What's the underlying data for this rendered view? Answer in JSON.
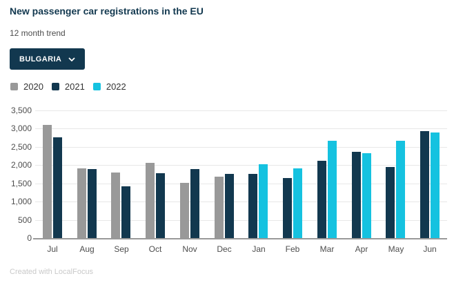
{
  "header": {
    "title": "New passenger car registrations in the EU",
    "subtitle": "12 month trend"
  },
  "dropdown": {
    "selected": "BULGARIA"
  },
  "footer": {
    "credit": "Created with LocalFocus"
  },
  "colors": {
    "accent_navy": "#12384f",
    "accent_cyan": "#15c2e0",
    "accent_gray": "#999999"
  },
  "chart_data": {
    "type": "bar",
    "title": "New passenger car registrations in the EU",
    "subtitle": "12 month trend",
    "categories": [
      "Jul",
      "Aug",
      "Sep",
      "Oct",
      "Nov",
      "Dec",
      "Jan",
      "Feb",
      "Mar",
      "Apr",
      "May",
      "Jun"
    ],
    "series": [
      {
        "name": "2020",
        "color": "#999999",
        "values": [
          3100,
          1910,
          1790,
          2060,
          1510,
          1680,
          null,
          null,
          null,
          null,
          null,
          null
        ]
      },
      {
        "name": "2021",
        "color": "#12384f",
        "values": [
          2760,
          1890,
          1420,
          1780,
          1890,
          1760,
          1760,
          1640,
          2120,
          2370,
          1950,
          2930
        ]
      },
      {
        "name": "2022",
        "color": "#15c2e0",
        "values": [
          null,
          null,
          null,
          null,
          null,
          null,
          2020,
          1910,
          2670,
          2330,
          2670,
          2890
        ]
      }
    ],
    "ylabel": "",
    "xlabel": "",
    "ylim": [
      0,
      3500
    ],
    "ytick_step": 500,
    "grid": true,
    "legend_position": "top-left"
  }
}
